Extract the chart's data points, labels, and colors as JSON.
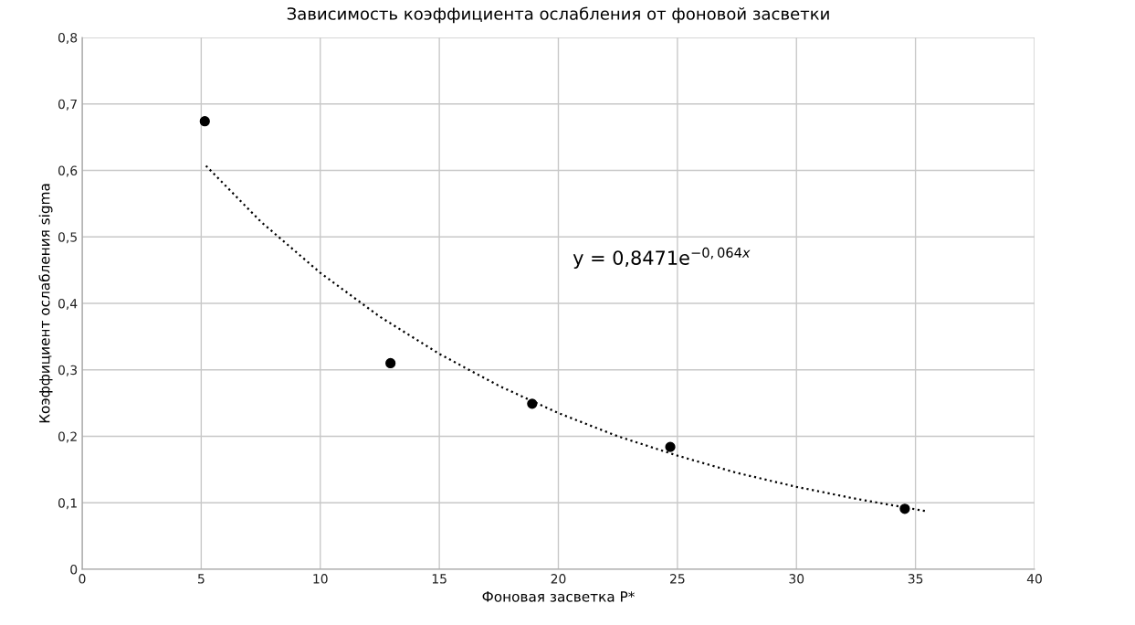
{
  "chart_data": {
    "type": "scatter",
    "title": "Зависимость коэффициента ослабления от фоновой засветки",
    "xlabel": "Фоновая засветка P*",
    "ylabel": "Коэффициент ослабления sigma",
    "x": [
      5.15,
      12.95,
      18.9,
      24.7,
      34.55
    ],
    "series": [
      {
        "color": "#000000",
        "marker": "circle",
        "values": [
          0.674,
          0.31,
          0.249,
          0.184,
          0.091
        ]
      },
      {
        "type": "line",
        "color": "#000000",
        "line_style": "dotted",
        "x": [
          5.2,
          7.5,
          10,
          12.5,
          15,
          17.5,
          20,
          22.5,
          25,
          27.5,
          30,
          32.5,
          35.5
        ],
        "values": [
          0.607,
          0.523,
          0.446,
          0.38,
          0.324,
          0.276,
          0.235,
          0.2,
          0.171,
          0.145,
          0.124,
          0.106,
          0.087
        ]
      }
    ],
    "annotations": [
      "y = 0,8471e$^{−0,064x}$"
    ],
    "xlim": [
      0,
      40
    ],
    "xticks": [
      0,
      5,
      10,
      15,
      20,
      25,
      30,
      35,
      40
    ],
    "ylim": [
      0,
      0.8
    ],
    "yticks": [
      0,
      {
        "value": 0.1,
        "label": "0,1"
      },
      {
        "value": 0.2,
        "label": "0,2"
      },
      {
        "value": 0.3,
        "label": "0,3"
      },
      {
        "value": 0.4,
        "label": "0,4"
      },
      {
        "value": 0.5,
        "label": "0,5"
      },
      {
        "value": 0.6,
        "label": "0,6"
      },
      {
        "value": 0.7,
        "label": "0,7"
      },
      {
        "value": 0.8,
        "label": "0,8"
      }
    ],
    "grid": true,
    "legend": false
  }
}
